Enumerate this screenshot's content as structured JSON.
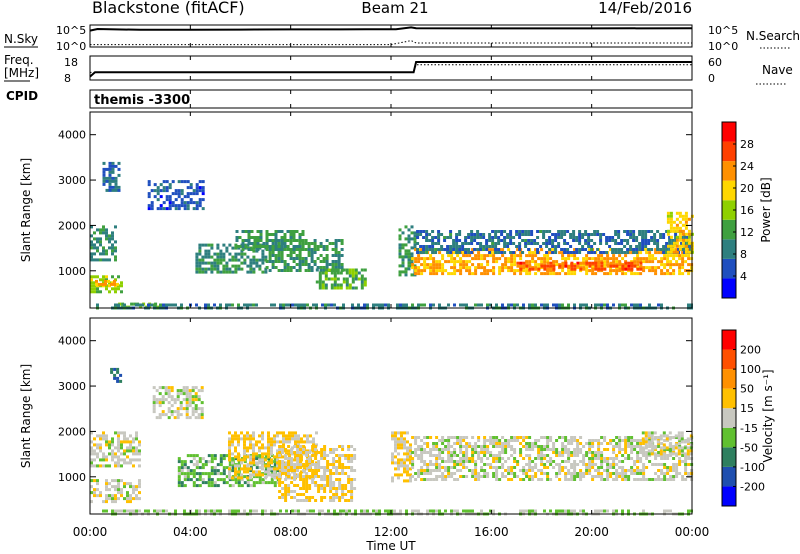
{
  "header": {
    "station": "Blackstone (fitACF)",
    "beam": "Beam 21",
    "date": "14/Feb/2016"
  },
  "noise_panel": {
    "left_label": "N.Sky",
    "right_label": "N.Search",
    "left_ticks": [
      "10^5",
      "10^0"
    ],
    "right_ticks": [
      "10^5",
      "10^0"
    ]
  },
  "freq_panel": {
    "left_label_1": "Freq.",
    "left_label_2": "[MHz]",
    "right_label": "Nave",
    "left_ticks": [
      "18",
      "8"
    ],
    "right_ticks": [
      "60",
      "0"
    ]
  },
  "cpid_panel": {
    "left_label": "CPID",
    "text": "themis -3300"
  },
  "time_axis": {
    "label": "Time UT",
    "ticks": [
      "00:00",
      "04:00",
      "08:00",
      "12:00",
      "16:00",
      "20:00",
      "00:00"
    ]
  },
  "power_panel": {
    "ylabel": "Slant Range [km]",
    "yticks": [
      "4000",
      "3000",
      "2000",
      "1000"
    ],
    "colorbar_label": "Power [dB]",
    "colorbar_ticks": [
      "28",
      "24",
      "20",
      "16",
      "12",
      "8",
      "4"
    ]
  },
  "velocity_panel": {
    "ylabel": "Slant Range [km]",
    "yticks": [
      "4000",
      "3000",
      "2000",
      "1000"
    ],
    "colorbar_label": "Velocity [m s⁻¹]",
    "colorbar_ticks": [
      "200",
      "100",
      "50",
      "15",
      "-15",
      "-50",
      "-100",
      "-200"
    ]
  },
  "colors": {
    "power_scale": [
      "#0000ff",
      "#1f4fbf",
      "#2e7f7f",
      "#3fa040",
      "#8fd000",
      "#ffd700",
      "#ff9000",
      "#ff4000",
      "#ff0000"
    ],
    "velocity_scale": [
      "#0000ff",
      "#1f4faf",
      "#2e7f5f",
      "#60c030",
      "#c8c8c0",
      "#ffc000",
      "#ff9000",
      "#ff5000",
      "#ff0000"
    ]
  },
  "chart_data": [
    {
      "type": "line",
      "title": "N.Sky / N.Search",
      "x_unit": "hours UT",
      "xlim": [
        0,
        24
      ],
      "series": [
        {
          "name": "N.Sky",
          "x": [
            0,
            0.3,
            2,
            4,
            6,
            8,
            10,
            11,
            12.2,
            12.8,
            13,
            16,
            20,
            24
          ],
          "y_log10": [
            4.1,
            4.5,
            4.3,
            4.3,
            4.35,
            4.4,
            4.4,
            4.45,
            4.45,
            4.9,
            4.7,
            4.65,
            4.65,
            4.7
          ]
        },
        {
          "name": "N.Search",
          "x": [
            0,
            2,
            4,
            6,
            8,
            10,
            12,
            12.8,
            13,
            16,
            20,
            24
          ],
          "y_log10": [
            0.6,
            0.6,
            0.6,
            0.6,
            0.6,
            0.6,
            0.6,
            1.6,
            1.0,
            1.0,
            1.0,
            1.0
          ]
        }
      ]
    },
    {
      "type": "line",
      "title": "Freq. / Nave",
      "x_unit": "hours UT",
      "xlim": [
        0,
        24
      ],
      "series": [
        {
          "name": "Freq.",
          "unit": "MHz",
          "x": [
            0,
            0.2,
            12.9,
            13.0,
            24
          ],
          "y": [
            8,
            10.5,
            10.5,
            16.5,
            16.5
          ]
        },
        {
          "name": "Nave",
          "x": [
            0,
            12.9,
            13.0,
            24
          ],
          "y": [
            19,
            19,
            38,
            38
          ]
        }
      ]
    },
    {
      "type": "heatmap",
      "title": "Power [dB]",
      "xlabel": "Time UT",
      "ylabel": "Slant Range [km]",
      "xlim": [
        0,
        24
      ],
      "ylim": [
        180,
        4500
      ],
      "zlim": [
        0,
        32
      ],
      "regions": [
        {
          "t": [
            0,
            1.0
          ],
          "r": [
            1250,
            2000
          ],
          "value": 10
        },
        {
          "t": [
            0,
            1.3
          ],
          "r": [
            550,
            900
          ],
          "value": 16
        },
        {
          "t": [
            0.2,
            1.3
          ],
          "r": [
            700,
            800
          ],
          "value": 22
        },
        {
          "t": [
            1.0,
            3.0
          ],
          "r": [
            200,
            300
          ],
          "value": 14
        },
        {
          "t": [
            0,
            24
          ],
          "r": [
            180,
            280
          ],
          "value": 9
        },
        {
          "t": [
            0.5,
            1.2
          ],
          "r": [
            2800,
            3400
          ],
          "value": 7
        },
        {
          "t": [
            2.3,
            4.5
          ],
          "r": [
            2400,
            3000
          ],
          "value": 6
        },
        {
          "t": [
            4.2,
            7.0
          ],
          "r": [
            1000,
            1600
          ],
          "value": 10
        },
        {
          "t": [
            5.8,
            8.5
          ],
          "r": [
            1500,
            1900
          ],
          "value": 11
        },
        {
          "t": [
            7.0,
            10.0
          ],
          "r": [
            1000,
            1700
          ],
          "value": 11
        },
        {
          "t": [
            9.0,
            11.0
          ],
          "r": [
            650,
            1050
          ],
          "value": 13
        },
        {
          "t": [
            12.3,
            13.0
          ],
          "r": [
            900,
            2000
          ],
          "value": 11
        },
        {
          "t": [
            12.8,
            24
          ],
          "r": [
            950,
            1500
          ],
          "value": 22
        },
        {
          "t": [
            13.0,
            24
          ],
          "r": [
            1400,
            1900
          ],
          "value": 8
        },
        {
          "t": [
            17.0,
            22.0
          ],
          "r": [
            1050,
            1200
          ],
          "value": 26
        },
        {
          "t": [
            23.0,
            24
          ],
          "r": [
            1400,
            2300
          ],
          "value": 20
        }
      ]
    },
    {
      "type": "heatmap",
      "title": "Velocity [m s⁻¹]",
      "xlabel": "Time UT",
      "ylabel": "Slant Range [km]",
      "xlim": [
        0,
        24
      ],
      "ylim": [
        180,
        4500
      ],
      "zlim": [
        -250,
        250
      ],
      "regions": [
        {
          "t": [
            0,
            2.0
          ],
          "r": [
            1250,
            2000
          ],
          "value": 0
        },
        {
          "t": [
            0,
            2.0
          ],
          "r": [
            450,
            950
          ],
          "value": 0
        },
        {
          "t": [
            0,
            24
          ],
          "r": [
            180,
            280
          ],
          "value": -30
        },
        {
          "t": [
            0.8,
            1.2
          ],
          "r": [
            3100,
            3400
          ],
          "value": -150
        },
        {
          "t": [
            2.5,
            4.5
          ],
          "r": [
            2300,
            3000
          ],
          "value": 0
        },
        {
          "t": [
            3.5,
            7.5
          ],
          "r": [
            800,
            1500
          ],
          "value": -60
        },
        {
          "t": [
            5.5,
            9.0
          ],
          "r": [
            1000,
            2000
          ],
          "value": 40
        },
        {
          "t": [
            7.5,
            10.5
          ],
          "r": [
            500,
            1700
          ],
          "value": 30
        },
        {
          "t": [
            12.0,
            12.8
          ],
          "r": [
            900,
            2000
          ],
          "value": 30
        },
        {
          "t": [
            12.8,
            24
          ],
          "r": [
            950,
            1900
          ],
          "value": 0
        },
        {
          "t": [
            22.0,
            24
          ],
          "r": [
            1500,
            2000
          ],
          "value": 0
        }
      ]
    }
  ]
}
